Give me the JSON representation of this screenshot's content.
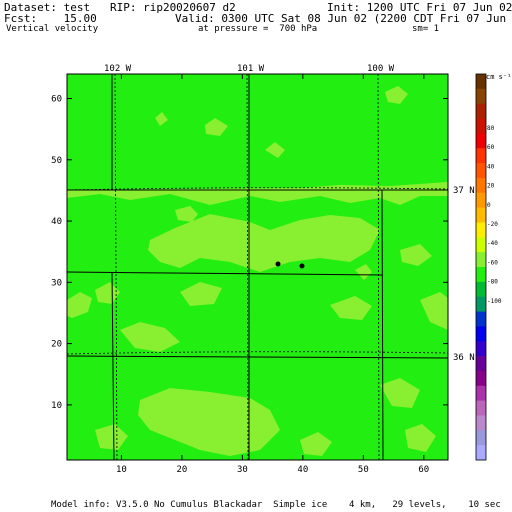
{
  "header": {
    "dataset_line": "Dataset: test   RIP: rip20020607 d2",
    "init_line": "Init: 1200 UTC Fri 07 Jun 02",
    "fcst_line": "Fcst:    15.00",
    "valid_line": "Valid: 0300 UTC Sat 08 Jun 02 (2200 CDT Fri 07 Jun 02)",
    "field_name": "Vertical velocity",
    "pressure_line": "at pressure =  700 hPa",
    "smoothing": "sm= 1"
  },
  "map": {
    "fill_color": "#22ee11",
    "light_patch_color": "#88f030",
    "lon_labels": [
      "102 W",
      "101 W",
      "100 W"
    ],
    "lat_labels": [
      "37 N",
      "36 N"
    ],
    "x_ticks": [
      "10",
      "20",
      "30",
      "40",
      "50",
      "60"
    ],
    "y_ticks": [
      "60",
      "50",
      "40",
      "30",
      "20",
      "10"
    ],
    "x_range": [
      1,
      64
    ],
    "y_range": [
      1,
      64
    ]
  },
  "colorbar": {
    "units": "cm s⁻¹",
    "labels": [
      "80",
      "60",
      "40",
      "20",
      "0",
      "-20",
      "-40",
      "-60",
      "-80",
      "-100"
    ],
    "colors": [
      "#663300",
      "#884400",
      "#aa2200",
      "#cc1100",
      "#ee0000",
      "#ff3300",
      "#ff5500",
      "#ff7700",
      "#ff9900",
      "#ffbb00",
      "#ffee00",
      "#ccff00",
      "#88f030",
      "#22ee11",
      "#00bb33",
      "#009966",
      "#0033cc",
      "#0000ee",
      "#3300cc",
      "#660099",
      "#880088",
      "#aa33aa",
      "#bb66bb",
      "#bb88cc",
      "#9999dd",
      "#aaaaff"
    ]
  },
  "footer": {
    "model_info": "Model info: V3.5.0 No Cumulus Blackadar  Simple ice    4 km,   29 levels,    10 sec"
  }
}
